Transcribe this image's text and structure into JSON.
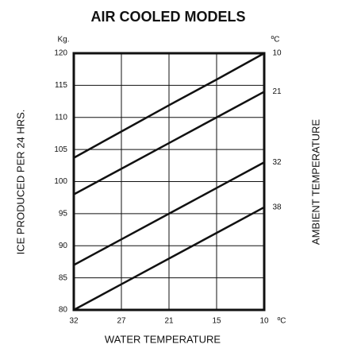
{
  "chart_data": {
    "type": "line",
    "title": "AIR COOLED MODELS",
    "y_unit": "Kg.",
    "y_label": "ICE PRODUCED PER 24 HRS.",
    "x_label": "WATER TEMPERATURE",
    "x_unit": "ºC",
    "series_unit": "ºC",
    "series_title": "AMBIENT TEMPERATURE",
    "categories": [
      "32",
      "27",
      "21",
      "15",
      "10"
    ],
    "series": [
      {
        "name": "10",
        "color": "#111111",
        "values": [
          103.7,
          107.8,
          111.9,
          115.9,
          120
        ]
      },
      {
        "name": "21",
        "color": "#111111",
        "values": [
          98,
          102,
          106,
          110,
          114
        ]
      },
      {
        "name": "32",
        "color": "#111111",
        "values": [
          87,
          91,
          95,
          99,
          103
        ]
      },
      {
        "name": "38",
        "color": "#111111",
        "values": [
          80,
          84,
          88,
          92,
          96
        ]
      }
    ],
    "ylim": [
      80,
      120
    ],
    "yticks": [
      80,
      85,
      90,
      95,
      100,
      105,
      110,
      115,
      120
    ],
    "grid": true
  }
}
